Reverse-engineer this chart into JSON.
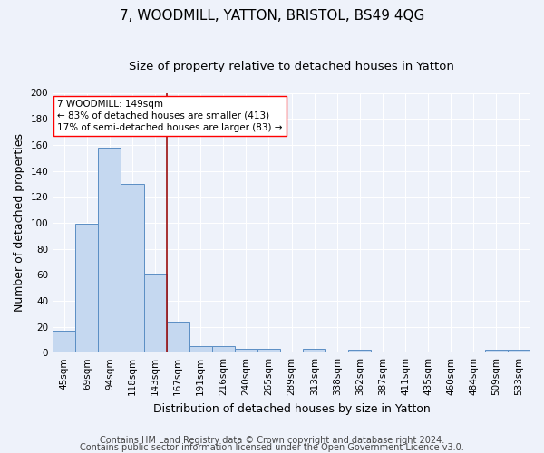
{
  "title": "7, WOODMILL, YATTON, BRISTOL, BS49 4QG",
  "subtitle": "Size of property relative to detached houses in Yatton",
  "xlabel": "Distribution of detached houses by size in Yatton",
  "ylabel": "Number of detached properties",
  "categories": [
    "45sqm",
    "69sqm",
    "94sqm",
    "118sqm",
    "143sqm",
    "167sqm",
    "191sqm",
    "216sqm",
    "240sqm",
    "265sqm",
    "289sqm",
    "313sqm",
    "338sqm",
    "362sqm",
    "387sqm",
    "411sqm",
    "435sqm",
    "460sqm",
    "484sqm",
    "509sqm",
    "533sqm"
  ],
  "values": [
    17,
    99,
    158,
    130,
    61,
    24,
    5,
    5,
    3,
    3,
    0,
    3,
    0,
    2,
    0,
    0,
    0,
    0,
    0,
    2,
    2
  ],
  "bar_color": "#c5d8f0",
  "bar_edge_color": "#5b8ec4",
  "vline_color": "#9b1010",
  "vline_x_index": 4.5,
  "ylim": [
    0,
    200
  ],
  "yticks": [
    0,
    20,
    40,
    60,
    80,
    100,
    120,
    140,
    160,
    180,
    200
  ],
  "annotation_line1": "7 WOODMILL: 149sqm",
  "annotation_line2": "← 83% of detached houses are smaller (413)",
  "annotation_line3": "17% of semi-detached houses are larger (83) →",
  "footer_line1": "Contains HM Land Registry data © Crown copyright and database right 2024.",
  "footer_line2": "Contains public sector information licensed under the Open Government Licence v3.0.",
  "background_color": "#eef2fa",
  "title_fontsize": 11,
  "subtitle_fontsize": 9.5,
  "axis_label_fontsize": 9,
  "tick_fontsize": 7.5,
  "annotation_fontsize": 7.5,
  "footer_fontsize": 7
}
